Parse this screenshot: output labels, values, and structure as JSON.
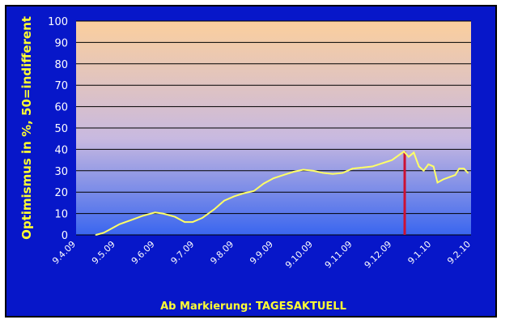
{
  "chart_data": {
    "type": "line",
    "ylabel": "Optimismus in %, 50=indifferent",
    "footer": "Ab Markierung: TAGESAKTUELL",
    "ylim": [
      0,
      100
    ],
    "yticks": [
      0,
      10,
      20,
      30,
      40,
      50,
      60,
      70,
      80,
      90,
      100
    ],
    "xticks": [
      "9.4.09",
      "9.5.09",
      "9.6.09",
      "9.7.09",
      "9.8.09",
      "9.9.09",
      "9.10.09",
      "9.11.09",
      "9.12.09",
      "9.1.10",
      "9.2.10"
    ],
    "grid": true,
    "series": [
      {
        "color": "#ffff66",
        "points": [
          [
            0.5,
            0
          ],
          [
            0.7,
            1
          ],
          [
            0.9,
            3
          ],
          [
            1.1,
            5
          ],
          [
            1.4,
            7
          ],
          [
            1.7,
            9
          ],
          [
            2.0,
            10.5
          ],
          [
            2.2,
            10
          ],
          [
            2.5,
            8.5
          ],
          [
            2.75,
            6
          ],
          [
            2.95,
            6
          ],
          [
            3.2,
            8
          ],
          [
            3.5,
            12
          ],
          [
            3.75,
            16
          ],
          [
            4.0,
            18
          ],
          [
            4.25,
            19.5
          ],
          [
            4.5,
            20.5
          ],
          [
            4.75,
            24
          ],
          [
            5.0,
            26.5
          ],
          [
            5.25,
            28
          ],
          [
            5.5,
            29.5
          ],
          [
            5.75,
            30.5
          ],
          [
            6.0,
            30
          ],
          [
            6.25,
            29
          ],
          [
            6.5,
            28.5
          ],
          [
            6.75,
            29
          ],
          [
            7.0,
            31
          ],
          [
            7.25,
            31.5
          ],
          [
            7.5,
            32
          ],
          [
            7.75,
            33.5
          ],
          [
            8.0,
            35
          ],
          [
            8.15,
            37
          ],
          [
            8.3,
            39
          ],
          [
            8.42,
            36.5
          ],
          [
            8.55,
            38.5
          ],
          [
            8.68,
            32
          ],
          [
            8.8,
            30
          ],
          [
            8.92,
            33
          ],
          [
            9.05,
            32
          ],
          [
            9.15,
            24.5
          ],
          [
            9.3,
            26
          ],
          [
            9.45,
            27
          ],
          [
            9.6,
            28
          ],
          [
            9.7,
            31
          ],
          [
            9.82,
            31
          ],
          [
            9.92,
            29
          ]
        ]
      }
    ],
    "marker": {
      "x": 8.32,
      "color": "#cc1133"
    }
  }
}
